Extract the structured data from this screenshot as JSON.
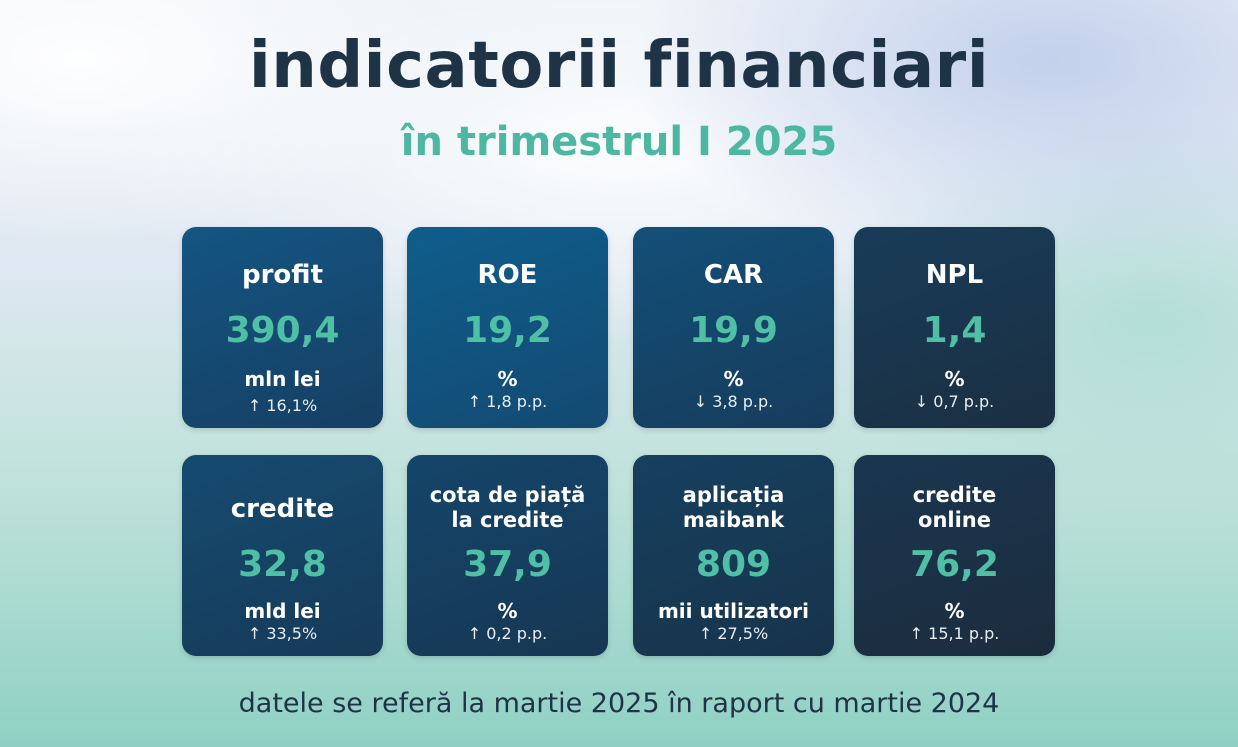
{
  "title": "indicatorii financiari",
  "subtitle": "în trimestrul I 2025",
  "cards": [
    {
      "label": "profit",
      "value": "390,4",
      "unit": "mln lei",
      "change": "↑ 16,1%"
    },
    {
      "label": "ROE",
      "value": "19,2",
      "unit": "%",
      "change": "↑ 1,8 p.p."
    },
    {
      "label": "CAR",
      "value": "19,9",
      "unit": "%",
      "change": "↓ 3,8 p.p."
    },
    {
      "label": "NPL",
      "value": "1,4",
      "unit": "%",
      "change": "↓ 0,7 p.p."
    },
    {
      "label": "credite",
      "value": "32,8",
      "unit": "mld lei",
      "change": "↑ 33,5%"
    },
    {
      "label_line1": "cota de piață",
      "label_line2": "la credite",
      "value": "37,9",
      "unit": "%",
      "change": "↑ 0,2 p.p."
    },
    {
      "label_line1": "aplicația",
      "label_line2": "maibank",
      "value": "809",
      "unit": "mii utilizatori",
      "change": "↑ 27,5%"
    },
    {
      "label_line1": "credite",
      "label_line2": "online",
      "value": "76,2",
      "unit": "%",
      "change": "↑ 15,1 p.p."
    }
  ],
  "footer": "datele se referă la martie 2025 în raport cu martie 2024",
  "colors": {
    "title": "#1f3347",
    "accent": "#4fbfa6",
    "card": "#134a72"
  }
}
